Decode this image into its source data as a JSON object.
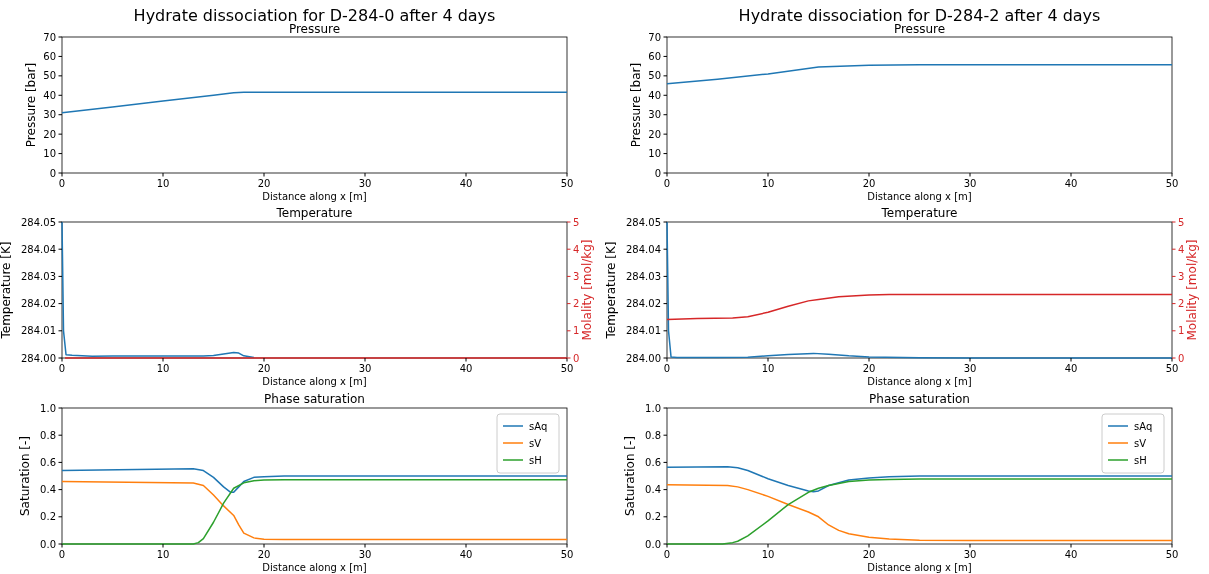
{
  "chart_data": [
    {
      "type": "line",
      "title": "Hydrate dissociation for D-284-0 after 4 days",
      "subtitle": "Pressure",
      "xlabel": "Distance along x [m]",
      "ylabel": "Pressure [bar]",
      "xlim": [
        0,
        50
      ],
      "xticks": [
        0,
        10,
        20,
        30,
        40,
        50
      ],
      "ylim": [
        0,
        70
      ],
      "yticks": [
        0,
        10,
        20,
        30,
        40,
        50,
        60,
        70
      ],
      "series": [
        {
          "color": "#1f77b4",
          "x": [
            0,
            5,
            10,
            15,
            17,
            18,
            50
          ],
          "values": [
            31,
            34,
            37,
            40,
            41.3,
            41.5,
            41.5
          ]
        }
      ]
    },
    {
      "type": "line",
      "title": "Hydrate dissociation for D-284-2 after 4 days",
      "subtitle": "Pressure",
      "xlabel": "Distance along x [m]",
      "ylabel": "Pressure [bar]",
      "xlim": [
        0,
        50
      ],
      "xticks": [
        0,
        10,
        20,
        30,
        40,
        50
      ],
      "ylim": [
        0,
        70
      ],
      "yticks": [
        0,
        10,
        20,
        30,
        40,
        50,
        60,
        70
      ],
      "series": [
        {
          "color": "#1f77b4",
          "x": [
            0,
            5,
            10,
            15,
            20,
            25,
            50
          ],
          "values": [
            46,
            48.3,
            51,
            54.5,
            55.5,
            55.7,
            55.7
          ]
        }
      ]
    },
    {
      "type": "line",
      "title": "Temperature",
      "xlabel": "Distance along x [m]",
      "ylabel": "Temperature [K]",
      "y2label": "Molality [mol/kg]",
      "xlim": [
        0,
        50
      ],
      "xticks": [
        0,
        10,
        20,
        30,
        40,
        50
      ],
      "ylim": [
        284,
        284.05
      ],
      "yticks": [
        {
          "value": 284,
          "label": "284.00"
        },
        {
          "value": 284.01,
          "label": "284.01"
        },
        {
          "value": 284.02,
          "label": "284.02"
        },
        {
          "value": 284.03,
          "label": "284.03"
        },
        {
          "value": 284.04,
          "label": "284.04"
        },
        {
          "value": 284.05,
          "label": "284.05"
        }
      ],
      "y2lim": [
        0,
        5
      ],
      "y2ticks": [
        0,
        1,
        2,
        3,
        4,
        5
      ],
      "series": [
        {
          "color": "#1f77b4",
          "x": [
            0,
            0.15,
            0.4,
            1,
            2,
            3,
            5,
            10,
            14,
            15,
            16,
            17,
            17.5,
            18,
            19
          ],
          "values": [
            284.05,
            284.01,
            284.0012,
            284.001,
            284.0008,
            284.0006,
            284.0007,
            284.0007,
            284.0007,
            284.0009,
            284.0015,
            284.002,
            284.0018,
            284.0008,
            284.0002
          ]
        },
        {
          "color": "#d62728",
          "axis": "y2",
          "x": [
            0.3,
            50
          ],
          "values": [
            0,
            0
          ]
        }
      ]
    },
    {
      "type": "line",
      "title": "Temperature",
      "xlabel": "Distance along x [m]",
      "ylabel": "Temperature [K]",
      "y2label": "Molality [mol/kg]",
      "xlim": [
        0,
        50
      ],
      "xticks": [
        0,
        10,
        20,
        30,
        40,
        50
      ],
      "ylim": [
        284,
        284.05
      ],
      "yticks": [
        {
          "value": 284,
          "label": "284.00"
        },
        {
          "value": 284.01,
          "label": "284.01"
        },
        {
          "value": 284.02,
          "label": "284.02"
        },
        {
          "value": 284.03,
          "label": "284.03"
        },
        {
          "value": 284.04,
          "label": "284.04"
        },
        {
          "value": 284.05,
          "label": "284.05"
        }
      ],
      "y2lim": [
        0,
        5
      ],
      "y2ticks": [
        0,
        1,
        2,
        3,
        4,
        5
      ],
      "series": [
        {
          "color": "#1f77b4",
          "x": [
            0,
            0.15,
            0.4,
            1,
            5,
            8,
            10,
            12,
            14.5,
            16,
            18,
            20,
            25,
            30,
            50
          ],
          "values": [
            284.05,
            284.01,
            284.0004,
            284.0002,
            284.0002,
            284.0003,
            284.0008,
            284.0013,
            284.0017,
            284.0014,
            284.0008,
            284.0004,
            284.0001,
            284,
            284
          ]
        },
        {
          "color": "#d62728",
          "axis": "y2",
          "x": [
            0,
            3,
            6.5,
            8,
            10,
            12,
            14,
            15,
            17,
            20,
            22,
            25,
            50
          ],
          "values": [
            1.42,
            1.45,
            1.47,
            1.52,
            1.68,
            1.9,
            2.1,
            2.15,
            2.25,
            2.32,
            2.33,
            2.33,
            2.33
          ]
        }
      ]
    },
    {
      "type": "line",
      "title": "Phase saturation",
      "xlabel": "Distance along x [m]",
      "ylabel": "Saturation [-]",
      "xlim": [
        0,
        50
      ],
      "xticks": [
        0,
        10,
        20,
        30,
        40,
        50
      ],
      "ylim": [
        0,
        1
      ],
      "yticks": [
        {
          "value": 0,
          "label": "0.0"
        },
        0.2,
        0.4,
        0.6,
        0.8,
        {
          "value": 1,
          "label": "1.0"
        }
      ],
      "legend": "top right",
      "series": [
        {
          "name": "sAq",
          "color": "#1f77b4",
          "x": [
            0,
            13,
            14,
            15,
            16,
            16.7,
            17,
            17.5,
            18,
            19,
            20,
            22,
            50
          ],
          "values": [
            0.54,
            0.553,
            0.54,
            0.49,
            0.42,
            0.38,
            0.38,
            0.42,
            0.46,
            0.49,
            0.495,
            0.5,
            0.5
          ]
        },
        {
          "name": "sV",
          "color": "#ff7f0e",
          "x": [
            0,
            13,
            14,
            15,
            16,
            17,
            17.5,
            18,
            19,
            20,
            22,
            50
          ],
          "values": [
            0.46,
            0.448,
            0.43,
            0.36,
            0.28,
            0.21,
            0.14,
            0.08,
            0.045,
            0.035,
            0.033,
            0.033
          ]
        },
        {
          "name": "sH",
          "color": "#2ca02c",
          "x": [
            0,
            13,
            13.5,
            14,
            15,
            16,
            17,
            18,
            19,
            20,
            22,
            50
          ],
          "values": [
            0,
            0,
            0.01,
            0.04,
            0.16,
            0.3,
            0.41,
            0.45,
            0.465,
            0.47,
            0.472,
            0.472
          ]
        }
      ]
    },
    {
      "type": "line",
      "title": "Phase saturation",
      "xlabel": "Distance along x [m]",
      "ylabel": "Saturation [-]",
      "xlim": [
        0,
        50
      ],
      "xticks": [
        0,
        10,
        20,
        30,
        40,
        50
      ],
      "ylim": [
        0,
        1
      ],
      "yticks": [
        {
          "value": 0,
          "label": "0.0"
        },
        0.2,
        0.4,
        0.6,
        0.8,
        {
          "value": 1,
          "label": "1.0"
        }
      ],
      "legend": "top right",
      "series": [
        {
          "name": "sAq",
          "color": "#1f77b4",
          "x": [
            0,
            6,
            7,
            8,
            10,
            12,
            14,
            14.5,
            15,
            16,
            18,
            20,
            22,
            25,
            50
          ],
          "values": [
            0.565,
            0.568,
            0.56,
            0.54,
            0.48,
            0.43,
            0.39,
            0.385,
            0.39,
            0.43,
            0.47,
            0.485,
            0.495,
            0.5,
            0.5
          ]
        },
        {
          "name": "sV",
          "color": "#ff7f0e",
          "x": [
            0,
            6,
            7,
            8,
            10,
            12,
            14,
            15,
            16,
            17,
            18,
            20,
            22,
            25,
            30,
            50
          ],
          "values": [
            0.435,
            0.43,
            0.42,
            0.4,
            0.35,
            0.29,
            0.235,
            0.2,
            0.14,
            0.1,
            0.075,
            0.05,
            0.037,
            0.028,
            0.025,
            0.025
          ]
        },
        {
          "name": "sH",
          "color": "#2ca02c",
          "x": [
            0,
            5.5,
            6.5,
            7,
            8,
            10,
            12,
            14,
            15,
            16,
            18,
            20,
            22,
            25,
            50
          ],
          "values": [
            0,
            0,
            0.01,
            0.02,
            0.06,
            0.17,
            0.29,
            0.38,
            0.41,
            0.43,
            0.46,
            0.47,
            0.475,
            0.478,
            0.478
          ]
        }
      ]
    }
  ]
}
